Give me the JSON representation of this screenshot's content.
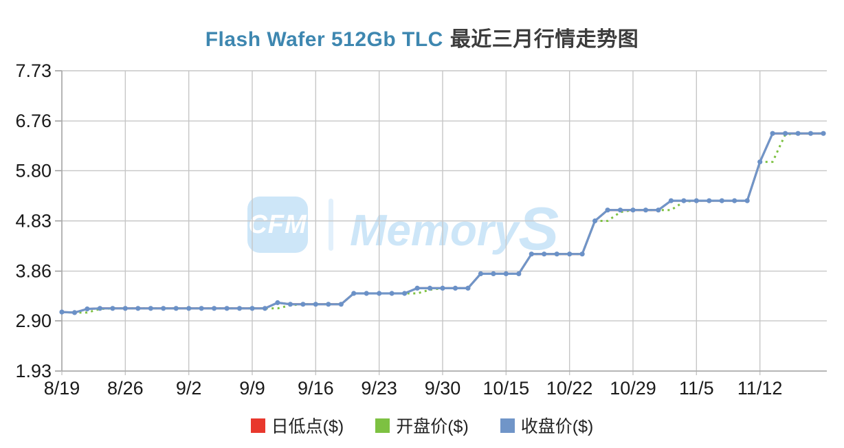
{
  "title": {
    "product": "Flash Wafer 512Gb TLC",
    "suffix": "最近三月行情走势图"
  },
  "watermark": {
    "badge": "CFM",
    "name": "Memory",
    "s": "S"
  },
  "legend": [
    {
      "label": "日低点($)",
      "color": "#e8382d"
    },
    {
      "label": "开盘价($)",
      "color": "#7dc142"
    },
    {
      "label": "收盘价($)",
      "color": "#7095c8"
    }
  ],
  "colors": {
    "title_brand": "#3e87b0",
    "title_text": "#3c3c3c",
    "grid": "#c6c6c6",
    "axis": "#a8a8a8",
    "tick": "#999999",
    "label": "#1a1a1a",
    "watermark": "#cde6f8"
  },
  "chart_data": {
    "type": "line",
    "title": "Flash Wafer 512Gb TLC 最近三月行情走势图",
    "xlabel": "",
    "ylabel": "",
    "ylim": [
      1.93,
      7.73
    ],
    "y_ticks": [
      7.73,
      6.76,
      5.8,
      4.83,
      3.86,
      2.9,
      1.93
    ],
    "y_tick_labels": [
      "7.73",
      "6.76",
      "5.80",
      "4.83",
      "3.86",
      "2.90",
      "1.93"
    ],
    "x_tick_labels": [
      "8/19",
      "8/26",
      "9/2",
      "9/9",
      "9/16",
      "9/23",
      "9/30",
      "10/15",
      "10/22",
      "10/29",
      "11/5",
      "11/12"
    ],
    "x_tick_indices": [
      0,
      5,
      10,
      15,
      20,
      25,
      30,
      35,
      40,
      45,
      50,
      55
    ],
    "n_points": 61,
    "grid": true,
    "legend_position": "bottom",
    "series": [
      {
        "name": "日低点($)",
        "color": "#e8382d",
        "style": "solid",
        "values": [
          3.07,
          3.06,
          3.13,
          3.14,
          3.14,
          3.14,
          3.14,
          3.14,
          3.14,
          3.14,
          3.14,
          3.14,
          3.14,
          3.14,
          3.14,
          3.14,
          3.14,
          3.25,
          3.22,
          3.22,
          3.22,
          3.22,
          3.22,
          3.43,
          3.43,
          3.43,
          3.43,
          3.43,
          3.53,
          3.53,
          3.53,
          3.53,
          3.53,
          3.81,
          3.81,
          3.81,
          3.81,
          4.19,
          4.19,
          4.19,
          4.19,
          4.19,
          4.83,
          5.04,
          5.04,
          5.04,
          5.04,
          5.04,
          5.22,
          5.22,
          5.22,
          5.22,
          5.22,
          5.22,
          5.22,
          5.97,
          6.52,
          6.52,
          6.52,
          6.52,
          6.52
        ]
      },
      {
        "name": "开盘价($)",
        "color": "#7dc142",
        "style": "dashed",
        "values": [
          3.07,
          3.06,
          3.06,
          3.13,
          3.14,
          3.14,
          3.14,
          3.14,
          3.14,
          3.14,
          3.14,
          3.14,
          3.14,
          3.14,
          3.14,
          3.14,
          3.14,
          3.14,
          3.2,
          3.22,
          3.22,
          3.22,
          3.22,
          3.43,
          3.43,
          3.43,
          3.43,
          3.43,
          3.43,
          3.5,
          3.53,
          3.53,
          3.53,
          3.81,
          3.81,
          3.81,
          3.81,
          4.19,
          4.19,
          4.19,
          4.19,
          4.19,
          4.83,
          4.83,
          5.0,
          5.04,
          5.04,
          5.04,
          5.04,
          5.2,
          5.22,
          5.22,
          5.22,
          5.22,
          5.22,
          5.97,
          5.97,
          6.5,
          6.52,
          6.52,
          6.52
        ]
      },
      {
        "name": "收盘价($)",
        "color": "#7095c8",
        "style": "solid-markers",
        "values": [
          3.07,
          3.06,
          3.13,
          3.14,
          3.14,
          3.14,
          3.14,
          3.14,
          3.14,
          3.14,
          3.14,
          3.14,
          3.14,
          3.14,
          3.14,
          3.14,
          3.14,
          3.25,
          3.22,
          3.22,
          3.22,
          3.22,
          3.22,
          3.43,
          3.43,
          3.43,
          3.43,
          3.43,
          3.53,
          3.53,
          3.53,
          3.53,
          3.53,
          3.81,
          3.81,
          3.81,
          3.81,
          4.19,
          4.19,
          4.19,
          4.19,
          4.19,
          4.83,
          5.04,
          5.04,
          5.04,
          5.04,
          5.04,
          5.22,
          5.22,
          5.22,
          5.22,
          5.22,
          5.22,
          5.22,
          5.97,
          6.52,
          6.52,
          6.52,
          6.52,
          6.52
        ]
      }
    ]
  }
}
